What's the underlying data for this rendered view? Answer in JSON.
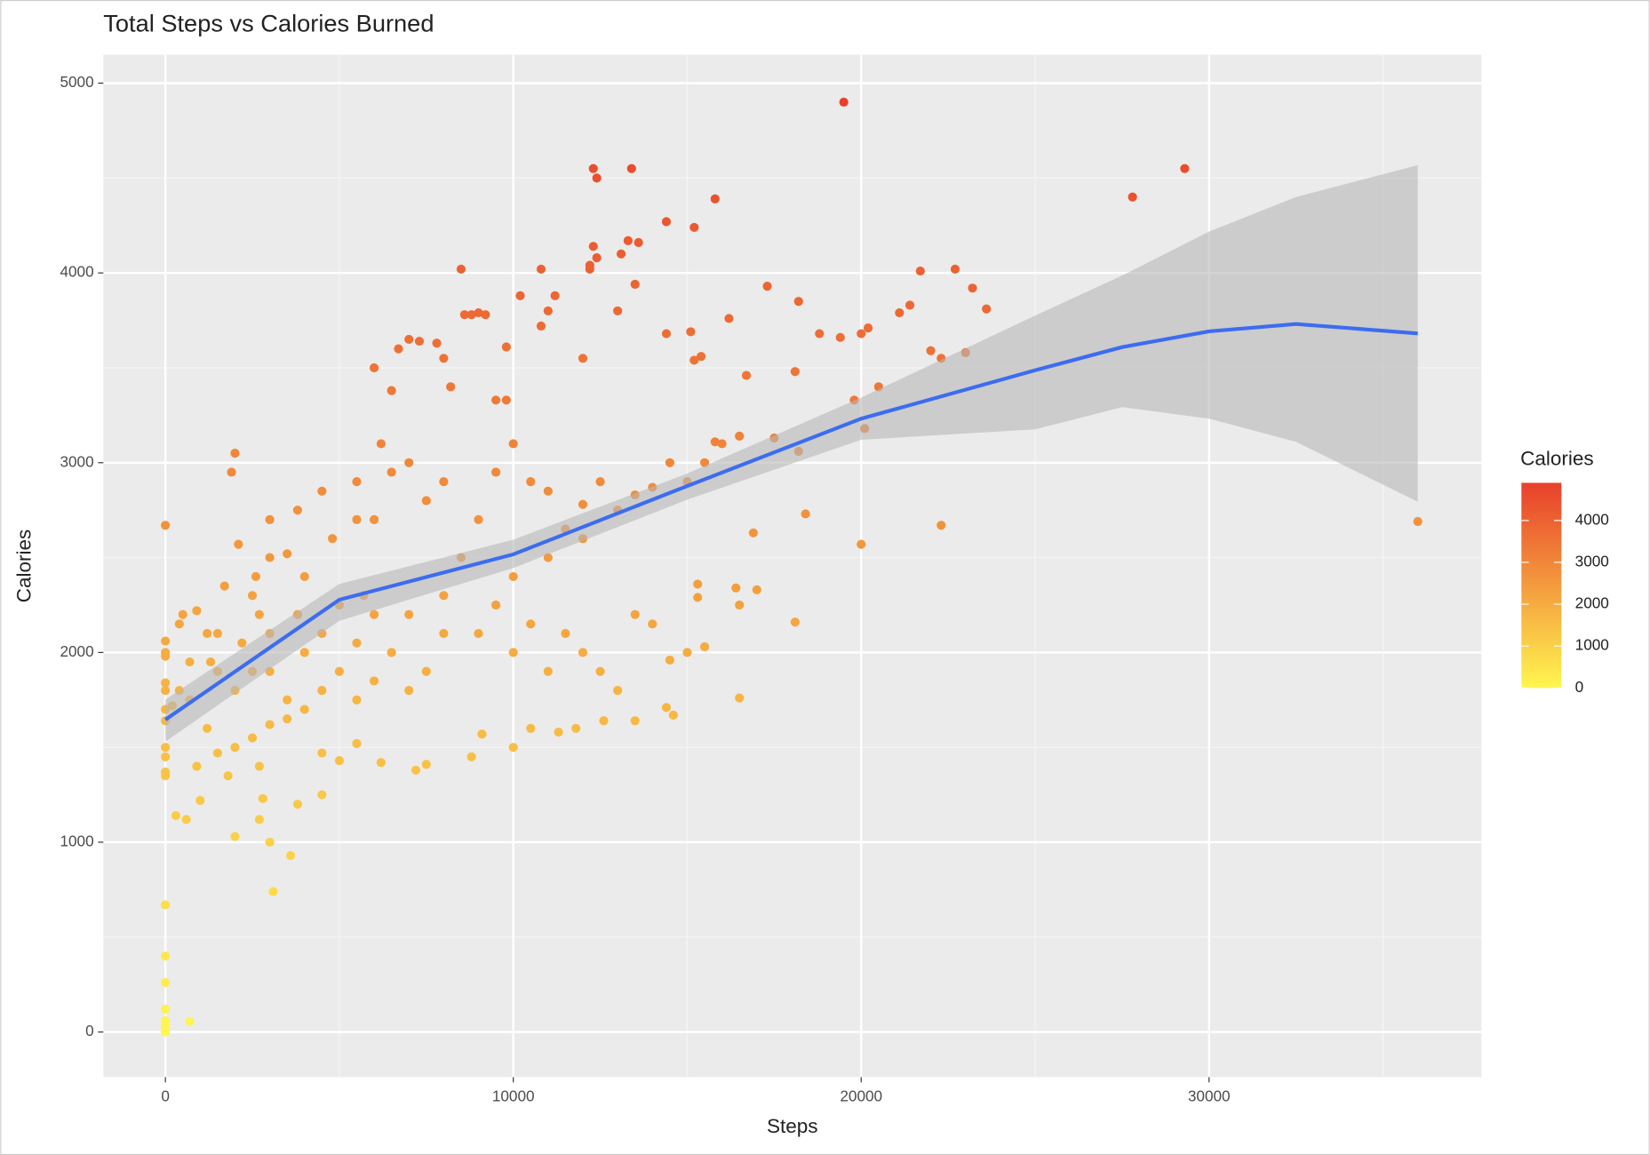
{
  "chart_data": {
    "type": "scatter",
    "title": "Total Steps vs Calories Burned",
    "x_label": "Steps",
    "y_label": "Calories",
    "legend_title": "Calories",
    "xlim": [
      -1784,
      37829
    ],
    "ylim": [
      -238,
      5150
    ],
    "xticks": [
      0,
      10000,
      20000,
      30000
    ],
    "yticks": [
      0,
      1000,
      2000,
      3000,
      4000,
      5000
    ],
    "xminor": [
      5000,
      15000,
      25000,
      35000
    ],
    "yminor": [
      500,
      1500,
      2500,
      3500,
      4500
    ],
    "grid": true,
    "legend_ticks": [
      0,
      1000,
      2000,
      3000,
      4000
    ],
    "color_scale": {
      "low": "#fff650",
      "high": "#e8402b"
    },
    "x": [
      0,
      0,
      0,
      0,
      0,
      0,
      0,
      0,
      0,
      0,
      0,
      0,
      0,
      0,
      0,
      0,
      0,
      0,
      0,
      700,
      300,
      600,
      200,
      400,
      500,
      900,
      700,
      1300,
      1500,
      1700,
      1900,
      2000,
      2100,
      2000,
      3000,
      3100,
      3600,
      2700,
      2800,
      3800,
      4500,
      900,
      1200,
      1500,
      2000,
      2500,
      2700,
      3000,
      3500,
      1800,
      1000,
      2200,
      2500,
      2600,
      3000,
      3000,
      3500,
      3800,
      4000,
      4500,
      4800,
      5000,
      5500,
      5700,
      6000,
      6200,
      6000,
      6500,
      6700,
      7000,
      7300,
      7800,
      8000,
      8200,
      8500,
      8600,
      8800,
      9000,
      9200,
      9500,
      9800,
      9800,
      10200,
      10800,
      10800,
      11000,
      11200,
      12000,
      12200,
      12300,
      12400,
      12300,
      12400,
      12200,
      13000,
      13100,
      13300,
      13400,
      13600,
      14400,
      15200,
      15800,
      19500,
      27800,
      29300,
      13500,
      14400,
      15100,
      15200,
      15400,
      15800,
      16000,
      16200,
      16700,
      17300,
      18100,
      18200,
      18800,
      19400,
      19800,
      20000,
      20200,
      20500,
      21100,
      21400,
      21700,
      22000,
      22300,
      22700,
      23000,
      23200,
      23600,
      18200,
      18400,
      20000,
      20100,
      22300,
      36000,
      16900,
      17000,
      16500,
      16400,
      18100,
      16500,
      15300,
      15300,
      15500,
      14600,
      14400,
      13500,
      12600,
      11800,
      11300,
      10500,
      10000,
      9100,
      8800,
      7500,
      7200,
      6200,
      5500,
      5000,
      4500,
      9000,
      9500,
      10000,
      10500,
      11000,
      11500,
      12000,
      12500,
      13000,
      13500,
      14000,
      14500,
      15000,
      9000,
      9500,
      10000,
      10500,
      11000,
      11500,
      12000,
      12500,
      13000,
      13500,
      14000,
      14500,
      15000,
      15500,
      16500,
      17500,
      8000,
      7500,
      7000,
      6500,
      5500,
      8000,
      7500,
      7000,
      6500,
      6000,
      5500,
      5000,
      4500,
      4000,
      3500,
      3000,
      2500,
      2000,
      1500,
      6000,
      7000,
      8000,
      8500,
      10000,
      11000,
      12000,
      4000,
      4500,
      5500,
      3800,
      3000,
      2700,
      1200,
      700,
      400
    ],
    "y": [
      2670,
      2060,
      2000,
      1980,
      1840,
      1800,
      1700,
      1640,
      1500,
      1450,
      1370,
      1350,
      670,
      400,
      260,
      120,
      60,
      30,
      0,
      55,
      1140,
      1120,
      1720,
      2150,
      2200,
      2220,
      1950,
      1950,
      2100,
      2350,
      2950,
      3050,
      2570,
      1030,
      1000,
      740,
      930,
      1120,
      1230,
      1200,
      1250,
      1400,
      1600,
      1470,
      1500,
      1550,
      1400,
      1620,
      1650,
      1350,
      1220,
      2050,
      2300,
      2400,
      2700,
      2500,
      2520,
      2750,
      2400,
      2850,
      2600,
      2250,
      2700,
      2300,
      2700,
      3100,
      3500,
      3380,
      3600,
      3650,
      3640,
      3630,
      3550,
      3400,
      4020,
      3780,
      3780,
      3790,
      3780,
      3330,
      3610,
      3330,
      3880,
      4020,
      3720,
      3800,
      3880,
      3550,
      4020,
      4550,
      4500,
      4140,
      4080,
      4040,
      3800,
      4100,
      4170,
      4550,
      4160,
      4270,
      4240,
      4390,
      4900,
      4400,
      4550,
      3940,
      3680,
      3690,
      3540,
      3560,
      3110,
      3100,
      3760,
      3460,
      3930,
      3480,
      3850,
      3680,
      3660,
      3330,
      3680,
      3710,
      3400,
      3790,
      3830,
      4010,
      3590,
      3550,
      4020,
      3580,
      3920,
      3810,
      3060,
      2730,
      2570,
      3180,
      2670,
      2690,
      2630,
      2330,
      2250,
      2340,
      2160,
      1760,
      2360,
      2290,
      2030,
      1670,
      1710,
      1640,
      1640,
      1600,
      1580,
      1600,
      1500,
      1570,
      1450,
      1410,
      1380,
      1420,
      1520,
      1430,
      1470,
      2100,
      2250,
      2000,
      2150,
      1900,
      2100,
      2000,
      1900,
      1800,
      2200,
      2150,
      1960,
      2000,
      2700,
      2950,
      3100,
      2900,
      2850,
      2650,
      2780,
      2900,
      2750,
      2830,
      2870,
      3000,
      2900,
      3000,
      3140,
      3130,
      2900,
      2800,
      3000,
      2950,
      2900,
      2100,
      1900,
      1800,
      2000,
      1850,
      1750,
      1900,
      1800,
      1700,
      1750,
      1900,
      1900,
      1800,
      1900,
      2200,
      2200,
      2300,
      2500,
      2400,
      2500,
      2600,
      2000,
      2100,
      2050,
      2200,
      2100,
      2200,
      2100,
      1750,
      1800
    ],
    "smooth": {
      "color": "#3c6cf0",
      "band_color": "#b8b8b8",
      "x": [
        0,
        5000,
        10000,
        15000,
        20000,
        25000,
        27500,
        30000,
        32500,
        36000
      ],
      "y": [
        1646,
        2278,
        2517,
        2877,
        3232,
        3487,
        3609,
        3692,
        3731,
        3681
      ],
      "lower": [
        1530,
        2167,
        2445,
        2805,
        3121,
        3176,
        3293,
        3232,
        3110,
        2794
      ],
      "upper": [
        1752,
        2361,
        2594,
        2943,
        3343,
        3775,
        3986,
        4218,
        4400,
        4568
      ]
    }
  }
}
